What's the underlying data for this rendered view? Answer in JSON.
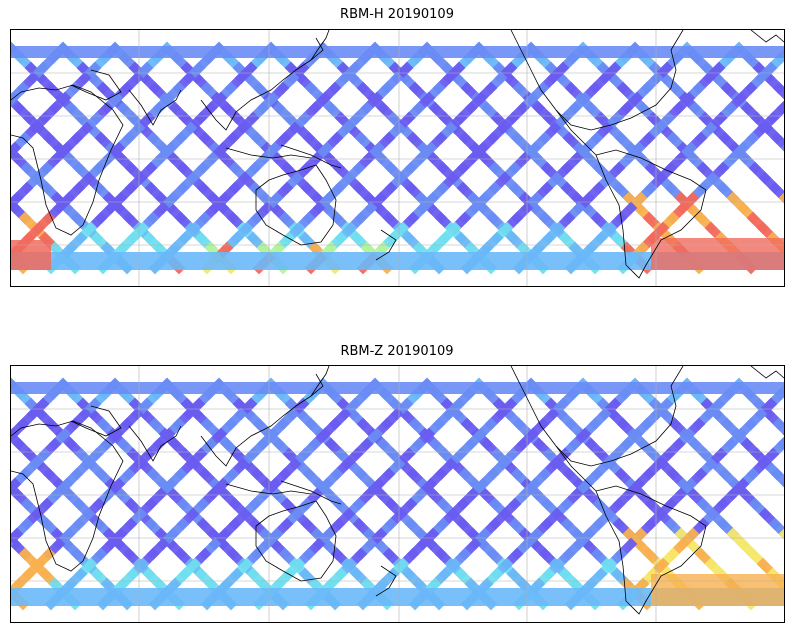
{
  "panels": [
    {
      "title": "RBM-H 20190109",
      "swath_palette": [
        "#6a5cf0",
        "#6a8cf5",
        "#6ab8f8",
        "#70e0f0",
        "#b6f59a",
        "#f6e86a",
        "#f9b04e",
        "#f26a5c"
      ],
      "hot_regions": [
        "south-america-south",
        "south-atlantic",
        "southern-ocean-west",
        "southern-ocean-central"
      ]
    },
    {
      "title": "RBM-Z 20190109",
      "swath_palette": [
        "#6a5cf0",
        "#6a8cf5",
        "#6ab8f8",
        "#70e0f0",
        "#b6f59a",
        "#f6e86a",
        "#f9b04e"
      ],
      "hot_regions": [
        "south-america-south",
        "south-atlantic"
      ]
    }
  ],
  "map": {
    "projection": "plate-carree",
    "central_longitude": "Pacific-centered",
    "gridlines": true,
    "coastline_color": "#000000",
    "gridline_color": "#b0b0b0"
  }
}
